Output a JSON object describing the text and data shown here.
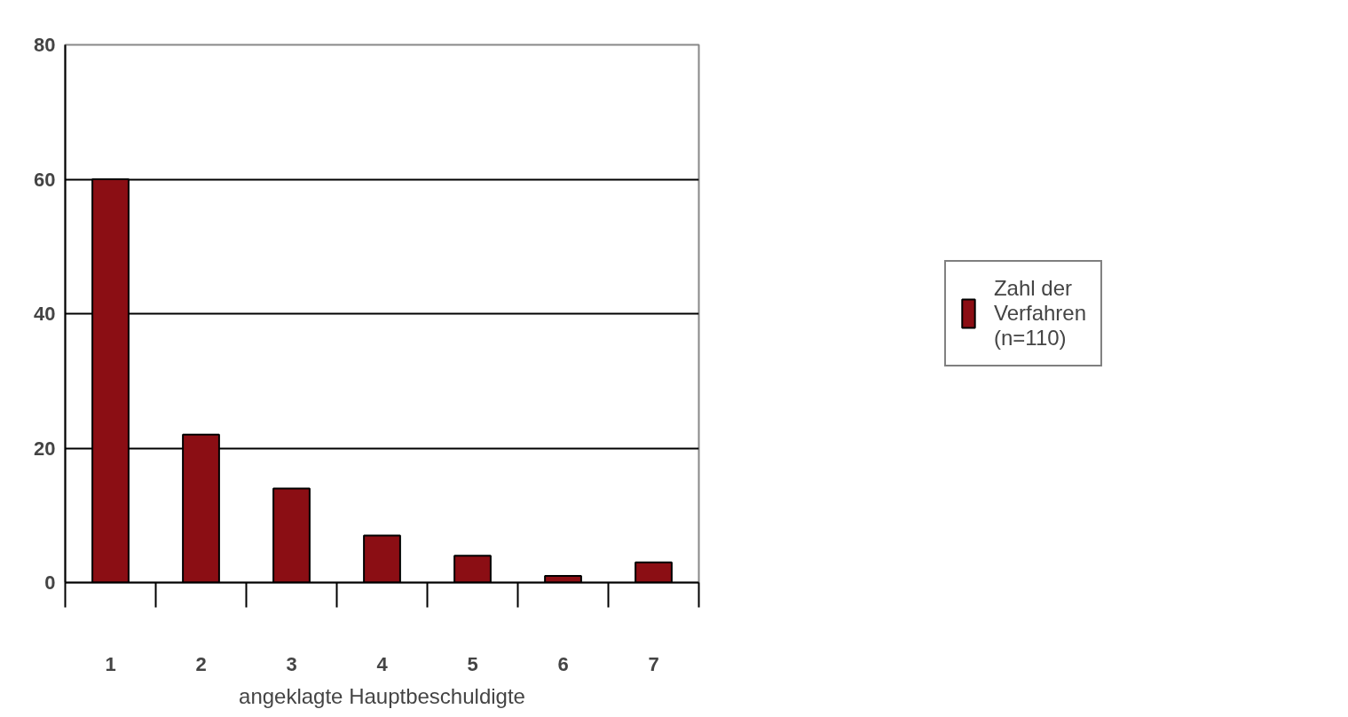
{
  "chart_data": {
    "type": "bar",
    "xlabel": "angeklagte Hauptbeschuldigte",
    "categories": [
      "1",
      "2",
      "3",
      "4",
      "5",
      "6",
      "7"
    ],
    "series": [
      {
        "name": "Zahl der Verfahren (n=110)",
        "color": "#8b0e14",
        "values": [
          60,
          22,
          14,
          7,
          4,
          1,
          3
        ]
      }
    ],
    "ylim": [
      0,
      80
    ],
    "yticks": [
      0,
      20,
      40,
      60,
      80
    ],
    "grid": "y",
    "legend": "right"
  }
}
